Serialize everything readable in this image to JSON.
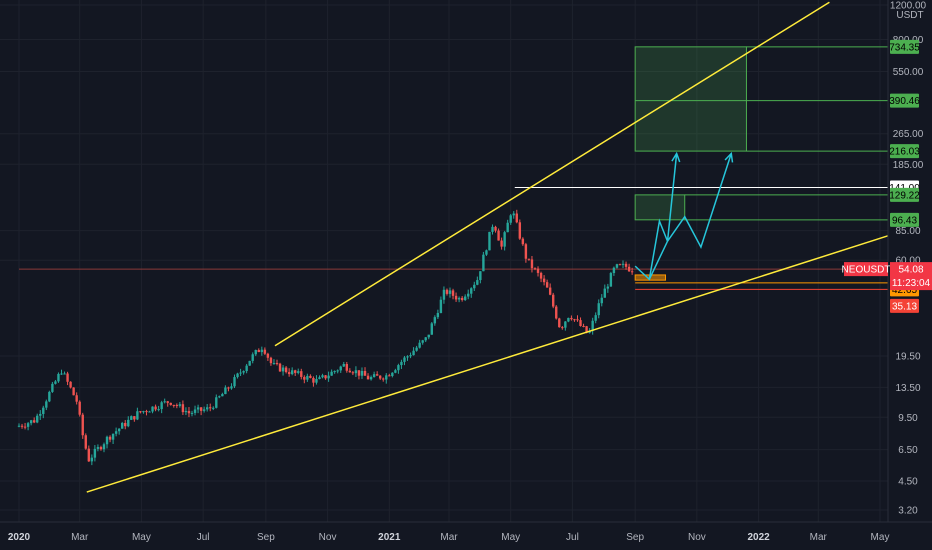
{
  "chart_data": {
    "type": "candlestick",
    "symbol": "NEOUSDT",
    "last_price": "54.08",
    "countdown": "11:23:04",
    "y_unit": "USDT",
    "y_scale": "log",
    "ylim": [
      3.0,
      1200
    ],
    "x_ticks": [
      {
        "label": "2020",
        "date": "2020-01-01",
        "bold": true
      },
      {
        "label": "Mar",
        "date": "2020-03-01"
      },
      {
        "label": "May",
        "date": "2020-05-01"
      },
      {
        "label": "Jul",
        "date": "2020-07-01"
      },
      {
        "label": "Sep",
        "date": "2020-09-01"
      },
      {
        "label": "Nov",
        "date": "2020-11-01"
      },
      {
        "label": "2021",
        "date": "2021-01-01",
        "bold": true
      },
      {
        "label": "Mar",
        "date": "2021-03-01"
      },
      {
        "label": "May",
        "date": "2021-05-01"
      },
      {
        "label": "Jul",
        "date": "2021-07-01"
      },
      {
        "label": "Sep",
        "date": "2021-09-01"
      },
      {
        "label": "Nov",
        "date": "2021-11-01"
      },
      {
        "label": "2022",
        "date": "2022-01-01",
        "bold": true
      },
      {
        "label": "Mar",
        "date": "2022-03-01"
      },
      {
        "label": "May",
        "date": "2022-05-01"
      }
    ],
    "y_ticks": [
      "1200.00",
      "800.00",
      "550.00",
      "265.00",
      "185.00",
      "85.00",
      "60.00",
      "19.50",
      "13.50",
      "9.50",
      "6.50",
      "4.50",
      "3.20"
    ],
    "price_anchors": [
      {
        "date": "2020-01-01",
        "price": 8.5
      },
      {
        "date": "2020-01-20",
        "price": 9.2
      },
      {
        "date": "2020-02-15",
        "price": 16.5
      },
      {
        "date": "2020-03-01",
        "price": 11.5
      },
      {
        "date": "2020-03-08",
        "price": 7.2
      },
      {
        "date": "2020-03-13",
        "price": 5.8
      },
      {
        "date": "2020-04-01",
        "price": 7.5
      },
      {
        "date": "2020-05-01",
        "price": 10.0
      },
      {
        "date": "2020-06-01",
        "price": 11.5
      },
      {
        "date": "2020-06-20",
        "price": 10.0
      },
      {
        "date": "2020-07-10",
        "price": 10.5
      },
      {
        "date": "2020-08-01",
        "price": 14.0
      },
      {
        "date": "2020-08-20",
        "price": 19.0
      },
      {
        "date": "2020-09-01",
        "price": 22.0
      },
      {
        "date": "2020-09-10",
        "price": 17.5
      },
      {
        "date": "2020-10-01",
        "price": 16.0
      },
      {
        "date": "2020-10-25",
        "price": 14.5
      },
      {
        "date": "2020-11-20",
        "price": 17.5
      },
      {
        "date": "2020-12-15",
        "price": 15.0
      },
      {
        "date": "2021-01-01",
        "price": 15.5
      },
      {
        "date": "2021-02-10",
        "price": 24.0
      },
      {
        "date": "2021-02-28",
        "price": 42.0
      },
      {
        "date": "2021-03-15",
        "price": 38.0
      },
      {
        "date": "2021-04-01",
        "price": 48.0
      },
      {
        "date": "2021-04-17",
        "price": 95.0
      },
      {
        "date": "2021-04-25",
        "price": 70.0
      },
      {
        "date": "2021-05-05",
        "price": 110.0
      },
      {
        "date": "2021-05-20",
        "price": 60.0
      },
      {
        "date": "2021-06-01",
        "price": 50.0
      },
      {
        "date": "2021-06-10",
        "price": 42.0
      },
      {
        "date": "2021-06-22",
        "price": 27.0
      },
      {
        "date": "2021-07-01",
        "price": 32.0
      },
      {
        "date": "2021-07-20",
        "price": 25.0
      },
      {
        "date": "2021-08-01",
        "price": 38.0
      },
      {
        "date": "2021-08-15",
        "price": 55.0
      },
      {
        "date": "2021-08-25",
        "price": 56.0
      },
      {
        "date": "2021-08-31",
        "price": 54.08
      }
    ],
    "trendlines": [
      {
        "name": "upper-trendline",
        "from": {
          "date": "2020-09-10",
          "price": 22.0
        },
        "to": {
          "date": "2022-03-12",
          "price": 1240
        },
        "color": "#ffeb3b"
      },
      {
        "name": "lower-trendline",
        "from": {
          "date": "2020-03-08",
          "price": 3.95
        },
        "to": {
          "date": "2022-05-25",
          "price": 85.0
        },
        "color": "#ffeb3b"
      }
    ],
    "horizontal_lines": [
      {
        "name": "resistance-141-line",
        "price": 141.0,
        "from": "2021-05-05",
        "color": "#ffffff"
      },
      {
        "name": "last-price-line",
        "price": 54.08,
        "from": "2020-01-01",
        "color": "#8b3a3a"
      },
      {
        "name": "support-4602-line",
        "price": 46.02,
        "from": "2021-09-01",
        "color": "#ff9800"
      },
      {
        "name": "support-4265-line",
        "price": 42.65,
        "from": "2021-09-01",
        "color": "#f44336"
      }
    ],
    "target_zones": [
      {
        "name": "target-zone-upper",
        "x_from": "2021-09-01",
        "x_to": "2021-12-20",
        "top": 734.35,
        "bottom": 216.03,
        "mid": 390.46
      },
      {
        "name": "target-zone-lower",
        "x_from": "2021-09-01",
        "x_to": "2021-10-20",
        "top": 129.22,
        "bottom": 96.43
      }
    ],
    "entry_zone": {
      "x_from": "2021-09-01",
      "x_to": "2021-10-01",
      "top": 50.5,
      "bottom": 47.5
    },
    "projection_path": [
      {
        "date": "2021-09-01",
        "price": 56
      },
      {
        "date": "2021-09-15",
        "price": 48
      },
      {
        "date": "2021-10-12",
        "price": 210
      },
      {
        "date": "2021-09-13",
        "price": 95
      },
      {
        "date": "2021-10-03",
        "price": 75
      },
      {
        "date": "2021-10-20",
        "price": 100
      },
      {
        "date": "2021-11-05",
        "price": 70
      },
      {
        "date": "2021-12-05",
        "price": 210
      }
    ],
    "price_tags": [
      {
        "name": "tag-734",
        "text": "734.35",
        "price": 734.35,
        "bg": "#4caf50",
        "fg": "#000000"
      },
      {
        "name": "tag-390",
        "text": "390.46",
        "price": 390.46,
        "bg": "#4caf50",
        "fg": "#000000"
      },
      {
        "name": "tag-216",
        "text": "216.03",
        "price": 216.03,
        "bg": "#4caf50",
        "fg": "#000000"
      },
      {
        "name": "tag-141",
        "text": "141.00",
        "price": 141.0,
        "bg": "#ffffff",
        "fg": "#000000"
      },
      {
        "name": "tag-129",
        "text": "129.22",
        "price": 129.22,
        "bg": "#4caf50",
        "fg": "#000000"
      },
      {
        "name": "tag-96",
        "text": "96.43",
        "price": 96.43,
        "bg": "#4caf50",
        "fg": "#000000"
      },
      {
        "name": "tag-4602",
        "text": "46.02",
        "price": 46.02,
        "bg": "#ff9800",
        "fg": "#000000"
      },
      {
        "name": "tag-4265",
        "text": "42.65",
        "price": 42.65,
        "bg": "#ff9800",
        "fg": "#000000"
      },
      {
        "name": "tag-3513",
        "text": "35.13",
        "price": 35.13,
        "bg": "#f44336",
        "fg": "#ffffff"
      }
    ],
    "colors": {
      "background": "#131722",
      "grid": "#1e222d",
      "up": "#26a69a",
      "down": "#ef5350",
      "trend": "#ffeb3b",
      "target": "#4caf50",
      "projection": "#26c6da",
      "price_tag": "#f23645"
    }
  }
}
